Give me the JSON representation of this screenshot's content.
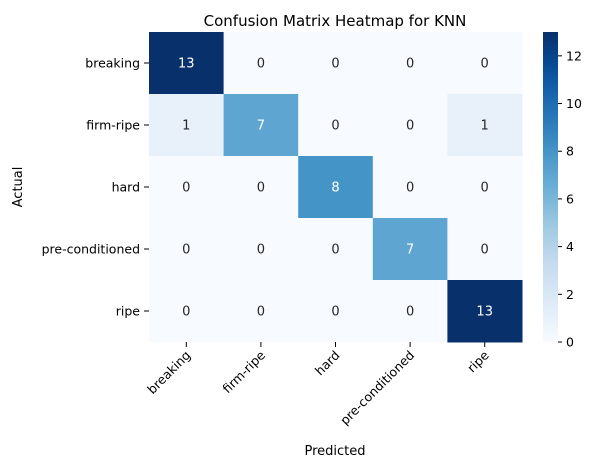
{
  "chart_data": {
    "type": "heatmap",
    "title": "Confusion Matrix Heatmap for KNN",
    "xlabel": "Predicted",
    "ylabel": "Actual",
    "x_categories": [
      "breaking",
      "firm-ripe",
      "hard",
      "pre-conditioned",
      "ripe"
    ],
    "y_categories": [
      "breaking",
      "firm-ripe",
      "hard",
      "pre-conditioned",
      "ripe"
    ],
    "values": [
      [
        13,
        0,
        0,
        0,
        0
      ],
      [
        1,
        7,
        0,
        0,
        1
      ],
      [
        0,
        0,
        8,
        0,
        0
      ],
      [
        0,
        0,
        0,
        7,
        0
      ],
      [
        0,
        0,
        0,
        0,
        13
      ]
    ],
    "colormap": "Blues",
    "colorbar": {
      "min": 0,
      "max": 13,
      "ticks": [
        "0",
        "2",
        "4",
        "6",
        "8",
        "10",
        "12"
      ]
    },
    "annotations": true
  }
}
